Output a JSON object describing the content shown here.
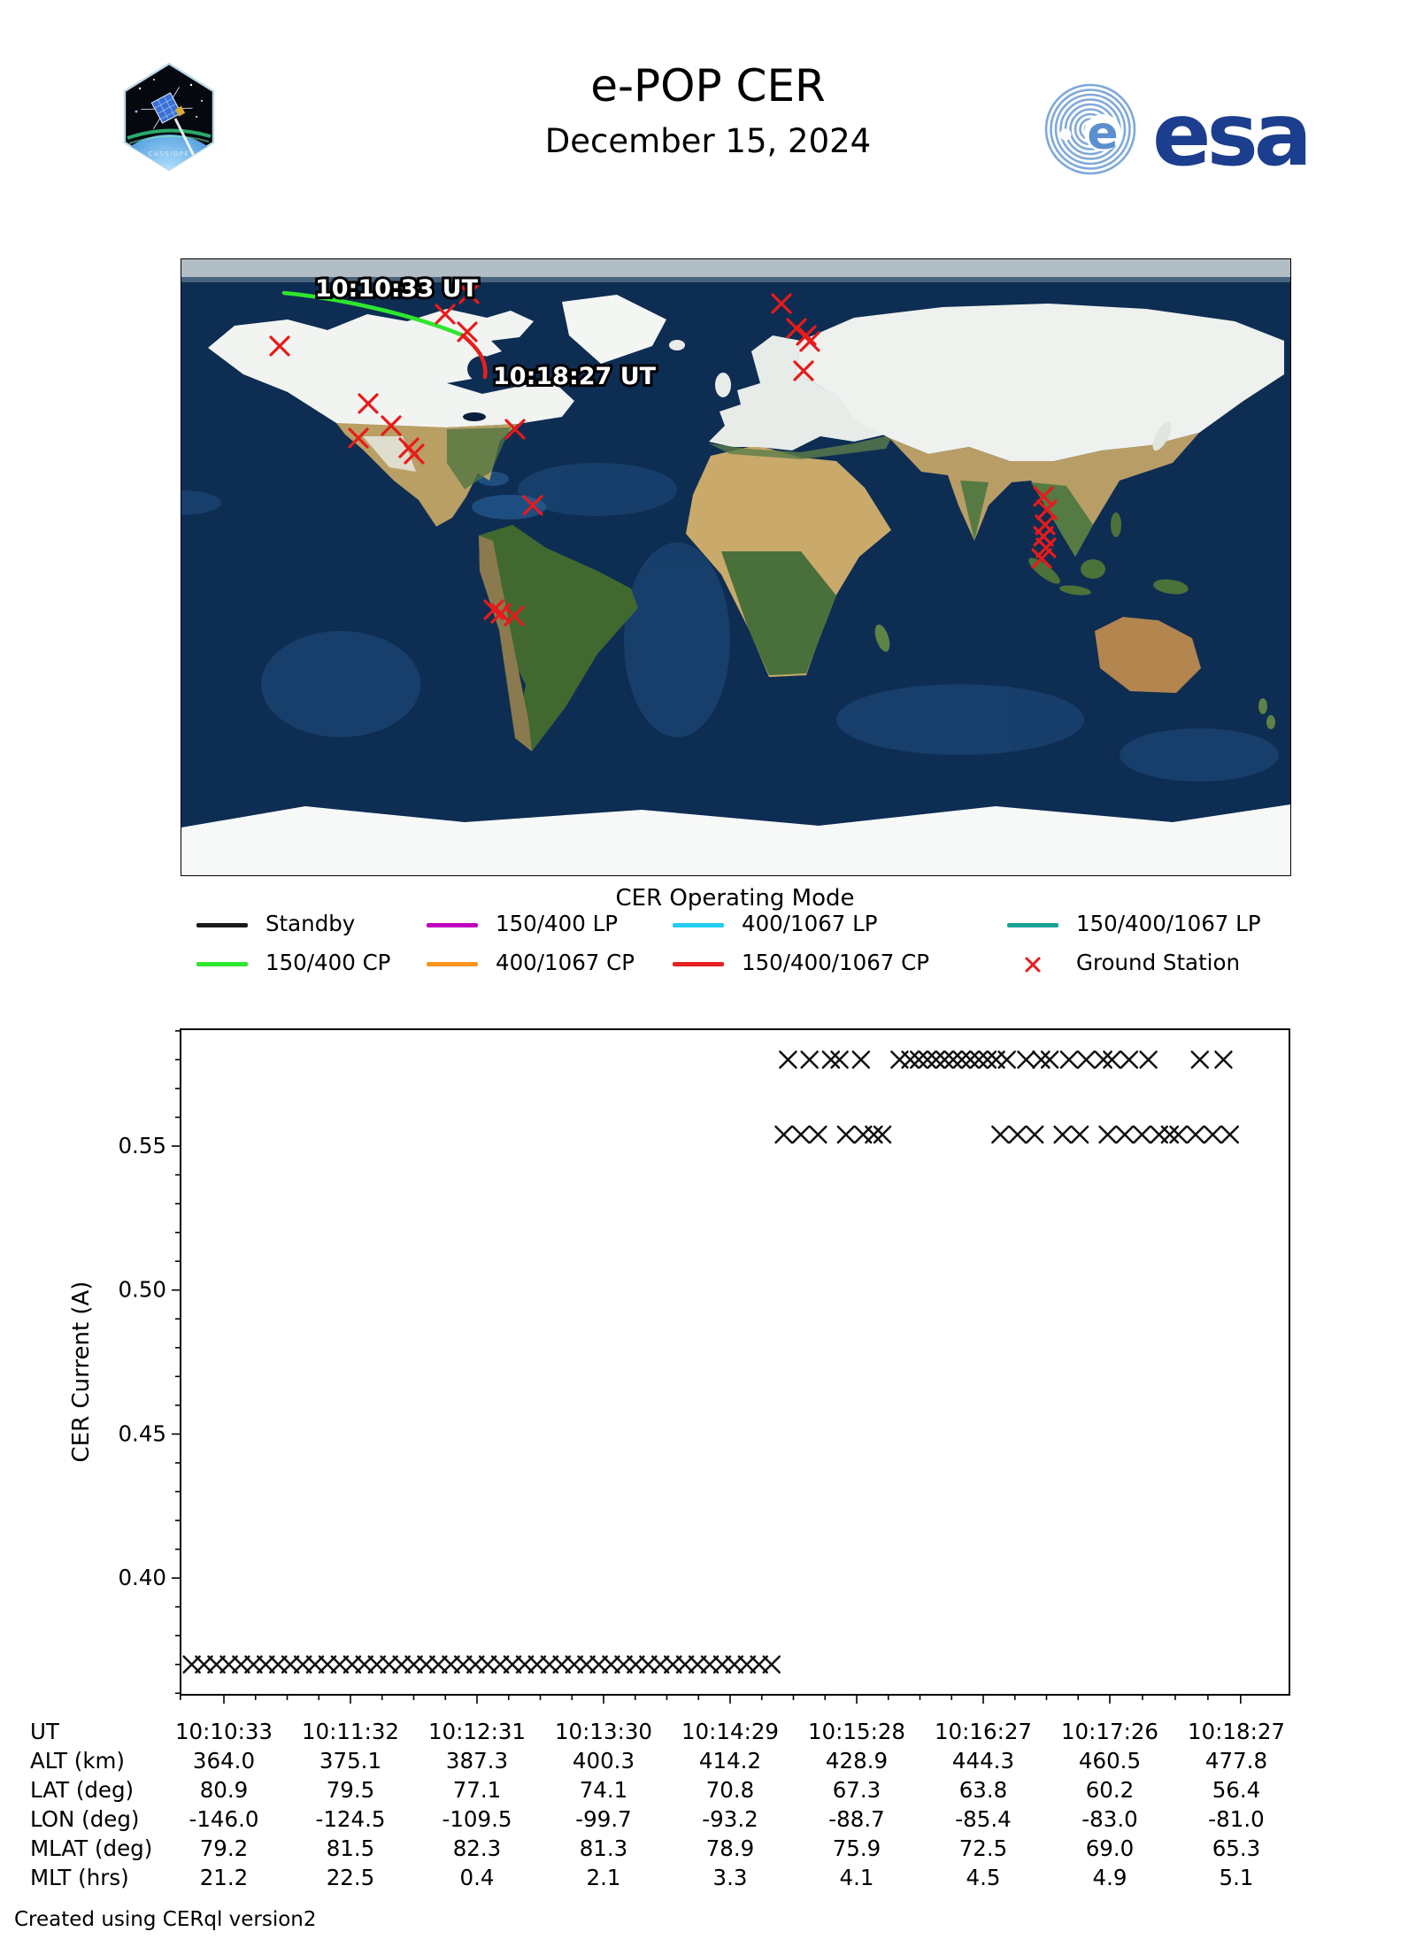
{
  "header": {
    "title": "e-POP CER",
    "subtitle": "December 15, 2024",
    "patch_text": "CASSIOPE",
    "esa_text": "esa"
  },
  "map": {
    "start_label": "10:10:33 UT",
    "end_label": "10:18:27 UT",
    "track": {
      "start": [
        116,
        38
      ],
      "transition": [
        318,
        86
      ],
      "end": [
        343,
        133
      ],
      "start_segment_mode": "150/400 CP",
      "end_segment_mode": "150/400/1067 CP",
      "start_color": "#2ee62e",
      "end_color": "#e62020"
    },
    "station_color": "#e81a1a",
    "stations": [
      [
        111,
        98
      ],
      [
        211,
        163
      ],
      [
        237,
        188
      ],
      [
        200,
        202
      ],
      [
        257,
        213
      ],
      [
        263,
        220
      ],
      [
        377,
        192
      ],
      [
        397,
        278
      ],
      [
        298,
        62
      ],
      [
        323,
        82
      ],
      [
        325,
        39
      ],
      [
        678,
        50
      ],
      [
        695,
        78
      ],
      [
        706,
        86
      ],
      [
        710,
        93
      ],
      [
        703,
        126
      ],
      [
        974,
        268
      ],
      [
        978,
        283
      ],
      [
        976,
        300
      ],
      [
        974,
        313
      ],
      [
        977,
        326
      ],
      [
        972,
        338
      ],
      [
        353,
        396
      ],
      [
        361,
        400
      ],
      [
        376,
        403
      ]
    ]
  },
  "legend": {
    "title": "CER Operating Mode",
    "items": [
      {
        "label": "Standby",
        "color": "#1a1a1a",
        "marker": "line"
      },
      {
        "label": "150/400 LP",
        "color": "#bf00bf",
        "marker": "line"
      },
      {
        "label": "400/1067 LP",
        "color": "#22ccf2",
        "marker": "line"
      },
      {
        "label": "150/400/1067 LP",
        "color": "#17a398",
        "marker": "line"
      },
      {
        "label": "150/400 CP",
        "color": "#2ee62e",
        "marker": "line"
      },
      {
        "label": "400/1067 CP",
        "color": "#f7941d",
        "marker": "line"
      },
      {
        "label": "150/400/1067 CP",
        "color": "#e62020",
        "marker": "line"
      },
      {
        "label": "Ground Station",
        "color": "#e81a1a",
        "marker": "x"
      }
    ]
  },
  "chart_data": {
    "type": "scatter",
    "marker": "x",
    "marker_color": "#111111",
    "ylabel": "CER Current (A)",
    "ylim": [
      0.3595,
      0.5905
    ],
    "yticks_major": [
      0.55,
      0.5,
      0.45,
      0.4
    ],
    "ytick_labels": [
      "0.55",
      "0.50",
      "0.45",
      "0.40"
    ],
    "ominor_step": 0.01,
    "xtick_labels": [
      "10:10:33",
      "10:11:32",
      "10:12:31",
      "10:13:30",
      "10:14:29",
      "10:15:28",
      "10:16:27",
      "10:17:26",
      "10:18:27"
    ],
    "xtick_seconds": [
      0,
      59,
      118,
      177,
      236,
      295,
      354,
      413,
      474
    ],
    "x_minor_per_interval": 3,
    "series": [
      {
        "name": "standby-low-current",
        "y": 0.37,
        "t": [
          -15,
          -9.3,
          -3.5,
          2.3,
          8,
          13.8,
          19.5,
          25.3,
          31,
          36.8,
          42.5,
          48.3,
          54,
          59.8,
          65.5,
          71.3,
          77,
          82.8,
          88.5,
          94.3,
          100,
          105.8,
          111.5,
          117.3,
          123,
          128.8,
          134.5,
          140.3,
          146,
          151.8,
          157.5,
          163.3,
          169,
          174.8,
          180.5,
          186.3,
          192,
          197.8,
          203.5,
          209.3,
          215,
          220.8,
          226.5,
          232.3,
          238,
          243.8,
          249.5,
          255.3
        ]
      },
      {
        "name": "high-current-upper",
        "y": 0.58,
        "t": [
          263,
          273,
          283,
          287,
          297,
          315,
          320,
          324,
          328,
          332,
          336,
          340,
          344,
          348,
          352,
          356,
          360,
          365,
          374,
          381,
          385,
          394,
          402,
          410,
          414,
          422,
          431,
          455,
          466
        ]
      },
      {
        "name": "high-current-lower",
        "y": 0.554,
        "t": [
          261,
          269,
          277,
          290,
          298,
          303,
          307,
          362,
          370,
          378,
          391,
          399,
          412,
          420,
          428,
          436,
          441,
          445,
          453,
          461,
          469
        ]
      }
    ]
  },
  "table": {
    "rows": [
      {
        "label": "UT",
        "values": [
          "10:10:33",
          "10:11:32",
          "10:12:31",
          "10:13:30",
          "10:14:29",
          "10:15:28",
          "10:16:27",
          "10:17:26",
          "10:18:27"
        ]
      },
      {
        "label": "ALT (km)",
        "values": [
          "364.0",
          "375.1",
          "387.3",
          "400.3",
          "414.2",
          "428.9",
          "444.3",
          "460.5",
          "477.8"
        ]
      },
      {
        "label": "LAT (deg)",
        "values": [
          "80.9",
          "79.5",
          "77.1",
          "74.1",
          "70.8",
          "67.3",
          "63.8",
          "60.2",
          "56.4"
        ]
      },
      {
        "label": "LON (deg)",
        "values": [
          "-146.0",
          "-124.5",
          "-109.5",
          "-99.7",
          "-93.2",
          "-88.7",
          "-85.4",
          "-83.0",
          "-81.0"
        ]
      },
      {
        "label": "MLAT (deg)",
        "values": [
          "79.2",
          "81.5",
          "82.3",
          "81.3",
          "78.9",
          "75.9",
          "72.5",
          "69.0",
          "65.3"
        ]
      },
      {
        "label": "MLT (hrs)",
        "values": [
          "21.2",
          "22.5",
          "0.4",
          "2.1",
          "3.3",
          "4.1",
          "4.5",
          "4.9",
          "5.1"
        ]
      }
    ]
  },
  "footer": {
    "credit": "Created using CERql version2"
  }
}
